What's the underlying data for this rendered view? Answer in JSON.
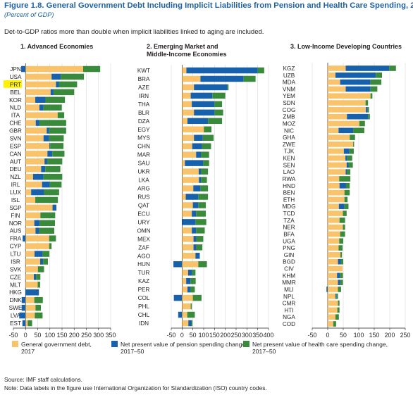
{
  "title": "Figure 1.8. General Government Debt Including Implicit Liabilities from Pension and Health Care Spending, 2017",
  "subtitle": "(Percent of GDP)",
  "caption": "Det-to-GDP ratios more than double when implicit liabilities linked to aging are included.",
  "source": "Source: IMF staff calculations.",
  "note": "Note: Data labels in the figure use International Organization for Standardization (ISO) country codes.",
  "colors": {
    "debt": "#f8c36a",
    "pension": "#1761ac",
    "health": "#3a8a3c",
    "highlight": "#fff200",
    "title": "#1d62a6"
  },
  "legend": [
    {
      "key": "debt",
      "label": [
        "General government debt,",
        "2017"
      ]
    },
    {
      "key": "pension",
      "label": [
        "Net present value of pension spending change,",
        "2017–50"
      ]
    },
    {
      "key": "health",
      "label": [
        "Net present value of health care spending change,",
        "2017–50"
      ]
    }
  ],
  "chart_data": [
    {
      "type": "bar",
      "stacked": true,
      "orientation": "horizontal",
      "title": "1. Advanced Economies",
      "xlim": [
        -50,
        350
      ],
      "xticks": [
        -50,
        0,
        50,
        100,
        150,
        200,
        250,
        300,
        350
      ],
      "highlight": "PRT",
      "categories": [
        "JPN",
        "USA",
        "PRT",
        "BEL",
        "KOR",
        "NLD",
        "ITA",
        "CHE",
        "GBR",
        "SVN",
        "ESP",
        "CAN",
        "AUT",
        "DEU",
        "NZL",
        "IRL",
        "LUX",
        "ISL",
        "SGP",
        "FIN",
        "NOR",
        "AUS",
        "FRA",
        "CYP",
        "LTU",
        "ISR",
        "SVK",
        "CZE",
        "MLT",
        "HKG",
        "DNK",
        "SWE",
        "LVA",
        "EST"
      ],
      "series": [
        {
          "name": "General government debt, 2017",
          "values": [
            237,
            107,
            125,
            103,
            40,
            57,
            132,
            42,
            87,
            74,
            98,
            90,
            78,
            64,
            31,
            68,
            23,
            40,
            111,
            61,
            36,
            41,
            97,
            97,
            37,
            60,
            51,
            34,
            50,
            0,
            36,
            41,
            38,
            9
          ]
        },
        {
          "name": "Net present value of pension spending change, 2017–50",
          "values": [
            -18,
            38,
            12,
            12,
            42,
            17,
            0,
            15,
            10,
            23,
            3,
            20,
            11,
            17,
            43,
            32,
            53,
            0,
            16,
            0,
            22,
            15,
            -12,
            0,
            33,
            12,
            0,
            9,
            0,
            55,
            -16,
            -16,
            -26,
            -13
          ]
        },
        {
          "name": "Net present value of health care spending change, 2017–50",
          "values": [
            70,
            95,
            75,
            85,
            80,
            75,
            27,
            110,
            70,
            60,
            55,
            50,
            62,
            62,
            77,
            48,
            62,
            93,
            0,
            61,
            63,
            62,
            28,
            10,
            28,
            20,
            25,
            18,
            10,
            0,
            35,
            22,
            32,
            18
          ]
        }
      ]
    },
    {
      "type": "bar",
      "stacked": true,
      "orientation": "horizontal",
      "title": "2. Emerging Market and Middle-Income Economies",
      "xlim": [
        -50,
        400
      ],
      "xticks": [
        -50,
        0,
        50,
        100,
        150,
        200,
        250,
        300,
        350,
        400
      ],
      "categories": [
        "KWT",
        "BRA",
        "AZE",
        "IRN",
        "THA",
        "BLR",
        "DZA",
        "EGY",
        "MYS",
        "CHN",
        "MAR",
        "SAU",
        "UKR",
        "LKA",
        "ARG",
        "RUS",
        "QAT",
        "ECU",
        "URY",
        "OMN",
        "MEX",
        "ZAF",
        "AGO",
        "HUN",
        "TUR",
        "KAZ",
        "PER",
        "COL",
        "PHL",
        "CHL",
        "IDN"
      ],
      "series": [
        {
          "name": "General government debt, 2017",
          "values": [
            20,
            85,
            55,
            40,
            45,
            55,
            25,
            101,
            55,
            47,
            65,
            13,
            77,
            78,
            52,
            17,
            50,
            45,
            0,
            45,
            53,
            53,
            62,
            75,
            28,
            19,
            25,
            50,
            40,
            24,
            29
          ]
        },
        {
          "name": "Net present value of pension spending change, 2017–50",
          "values": [
            330,
            200,
            155,
            100,
            105,
            95,
            95,
            0,
            41,
            45,
            22,
            85,
            10,
            10,
            33,
            58,
            25,
            20,
            62,
            20,
            13,
            13,
            20,
            -40,
            19,
            20,
            13,
            -38,
            0,
            -18,
            14
          ]
        },
        {
          "name": "Net present value of health care spending change, 2017–50",
          "values": [
            30,
            55,
            5,
            60,
            35,
            40,
            65,
            35,
            50,
            42,
            38,
            27,
            33,
            27,
            35,
            45,
            35,
            45,
            50,
            40,
            32,
            28,
            0,
            40,
            15,
            24,
            21,
            40,
            5,
            35,
            5
          ]
        }
      ]
    },
    {
      "type": "bar",
      "stacked": true,
      "orientation": "horizontal",
      "title": "3. Low-Income Developing Countries",
      "xlim": [
        -50,
        250
      ],
      "xticks": [
        -50,
        0,
        50,
        100,
        150,
        200,
        250
      ],
      "categories": [
        "KGZ",
        "UZB",
        "MDA",
        "VNM",
        "YEM",
        "SDN",
        "COG",
        "ZMB",
        "MOZ",
        "NIC",
        "GHA",
        "ZWE",
        "TJK",
        "KEN",
        "SEN",
        "LAO",
        "RWA",
        "HND",
        "BEN",
        "ETH",
        "MDG",
        "TCD",
        "TZA",
        "NER",
        "BFA",
        "UGA",
        "PNG",
        "GIN",
        "BGD",
        "CIV",
        "KHM",
        "MMR",
        "MLI",
        "NPL",
        "CMR",
        "HTI",
        "NGA",
        "COD"
      ],
      "series": [
        {
          "name": "General government debt, 2017",
          "values": [
            58,
            25,
            40,
            58,
            138,
            122,
            123,
            62,
            102,
            35,
            71,
            82,
            52,
            57,
            61,
            58,
            37,
            38,
            54,
            54,
            36,
            49,
            38,
            49,
            40,
            37,
            35,
            41,
            33,
            48,
            30,
            33,
            33,
            25,
            33,
            31,
            25,
            18
          ]
        },
        {
          "name": "Net present value of pension spending change, 2017–50",
          "values": [
            140,
            130,
            98,
            80,
            0,
            0,
            6,
            68,
            0,
            47,
            0,
            0,
            18,
            6,
            6,
            5,
            0,
            21,
            0,
            0,
            18,
            0,
            0,
            0,
            0,
            0,
            0,
            0,
            9,
            0,
            9,
            7,
            -4,
            3,
            0,
            0,
            0,
            0
          ]
        },
        {
          "name": "Net present value of health care spending change, 2017–50",
          "values": [
            22,
            20,
            35,
            22,
            6,
            8,
            4,
            6,
            18,
            36,
            17,
            3,
            14,
            16,
            14,
            10,
            36,
            12,
            17,
            10,
            13,
            12,
            18,
            7,
            16,
            13,
            13,
            5,
            8,
            0,
            10,
            9,
            10,
            5,
            5,
            7,
            11,
            9
          ]
        }
      ]
    }
  ]
}
